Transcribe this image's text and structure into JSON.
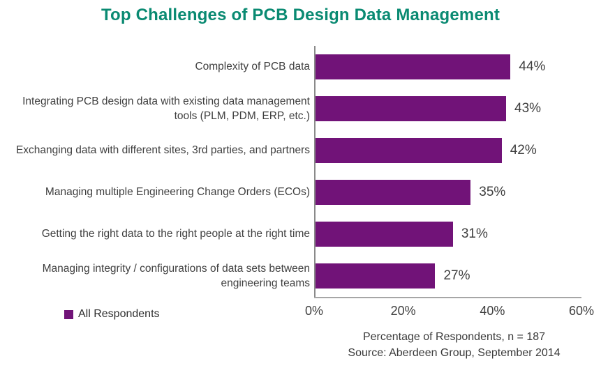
{
  "title": "Top Challenges of PCB Design Data Management",
  "colors": {
    "title_teal": "#0a8a72",
    "bar_purple": "#711378",
    "axis_gray": "#a6a6a6",
    "text_dark": "#3f3f3f"
  },
  "chart_data": {
    "type": "bar",
    "orientation": "horizontal",
    "title": "Top Challenges of PCB Design Data Management",
    "categories": [
      "Complexity of PCB data",
      "Integrating PCB design data with existing data management tools (PLM, PDM, ERP, etc.)",
      "Exchanging data with different sites, 3rd parties, and partners",
      "Managing multiple Engineering Change Orders (ECOs)",
      "Getting the right data to the right people at the right time",
      "Managing integrity / configurations of data sets between engineering teams"
    ],
    "values": [
      44,
      43,
      42,
      35,
      31,
      27
    ],
    "value_labels": [
      "44%",
      "43%",
      "42%",
      "35%",
      "31%",
      "27%"
    ],
    "series": [
      {
        "name": "All Respondents",
        "values": [
          44,
          43,
          42,
          35,
          31,
          27
        ]
      }
    ],
    "x_ticks": [
      "0%",
      "20%",
      "40%",
      "60%"
    ],
    "xlim": [
      0,
      60
    ],
    "xlabel": "Percentage of Respondents, n = 187",
    "grid": false,
    "legend_position": "bottom-left"
  },
  "legend": {
    "label": "All Respondents"
  },
  "footer": {
    "line1": "Percentage of Respondents, n = 187",
    "line2": "Source: Aberdeen Group, September 2014"
  }
}
